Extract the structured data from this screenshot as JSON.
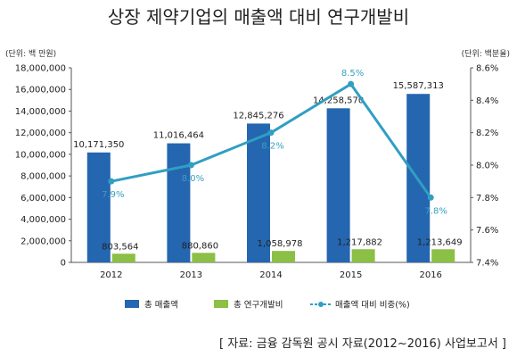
{
  "title": "상장 제약기업의 매출액 대비 연구개발비",
  "source": "[ 자료: 금융 감독원 공시 자료(2012~2016) 사업보고서 ]",
  "chart_data": {
    "type": "bar",
    "categories": [
      "2012",
      "2013",
      "2014",
      "2015",
      "2016"
    ],
    "left_unit": "(단위: 백 만원)",
    "right_unit": "(단위: 백분율)",
    "left_axis": {
      "ylim": [
        0,
        18000000
      ],
      "ticks": [
        "0",
        "2,000,000",
        "4,000,000",
        "6,000,000",
        "8,000,000",
        "10,000,000",
        "12,000,000",
        "14,000,000",
        "16,000,000",
        "18,000,000"
      ]
    },
    "right_axis": {
      "ylim": [
        7.4,
        8.6
      ],
      "ticks": [
        "7.4%",
        "7.6%",
        "7.8%",
        "8.0%",
        "8.2%",
        "8.4%",
        "8.6%"
      ]
    },
    "series": [
      {
        "name": "총 매출액",
        "kind": "bar",
        "axis": "left",
        "color": "#2566b0",
        "values": [
          10171350,
          11016464,
          12845276,
          14258570,
          15587313
        ],
        "labels": [
          "10,171,350",
          "11,016,464",
          "12,845,276",
          "14,258,570",
          "15,587,313"
        ]
      },
      {
        "name": "총 연구개발비",
        "kind": "bar",
        "axis": "left",
        "color": "#8cbf45",
        "values": [
          803564,
          880860,
          1058978,
          1217882,
          1213649
        ],
        "labels": [
          "803,564",
          "880,860",
          "1,058,978",
          "1,217,882",
          "1,213,649"
        ]
      },
      {
        "name": "매출액 대비 비중(%)",
        "kind": "line",
        "axis": "right",
        "color": "#2f9fc2",
        "values": [
          7.9,
          8.0,
          8.2,
          8.5,
          7.8
        ],
        "labels": [
          "7.9%",
          "8.0%",
          "8.2%",
          "8.5%",
          "7.8%"
        ]
      }
    ],
    "grid": false,
    "legend_position": "bottom"
  }
}
